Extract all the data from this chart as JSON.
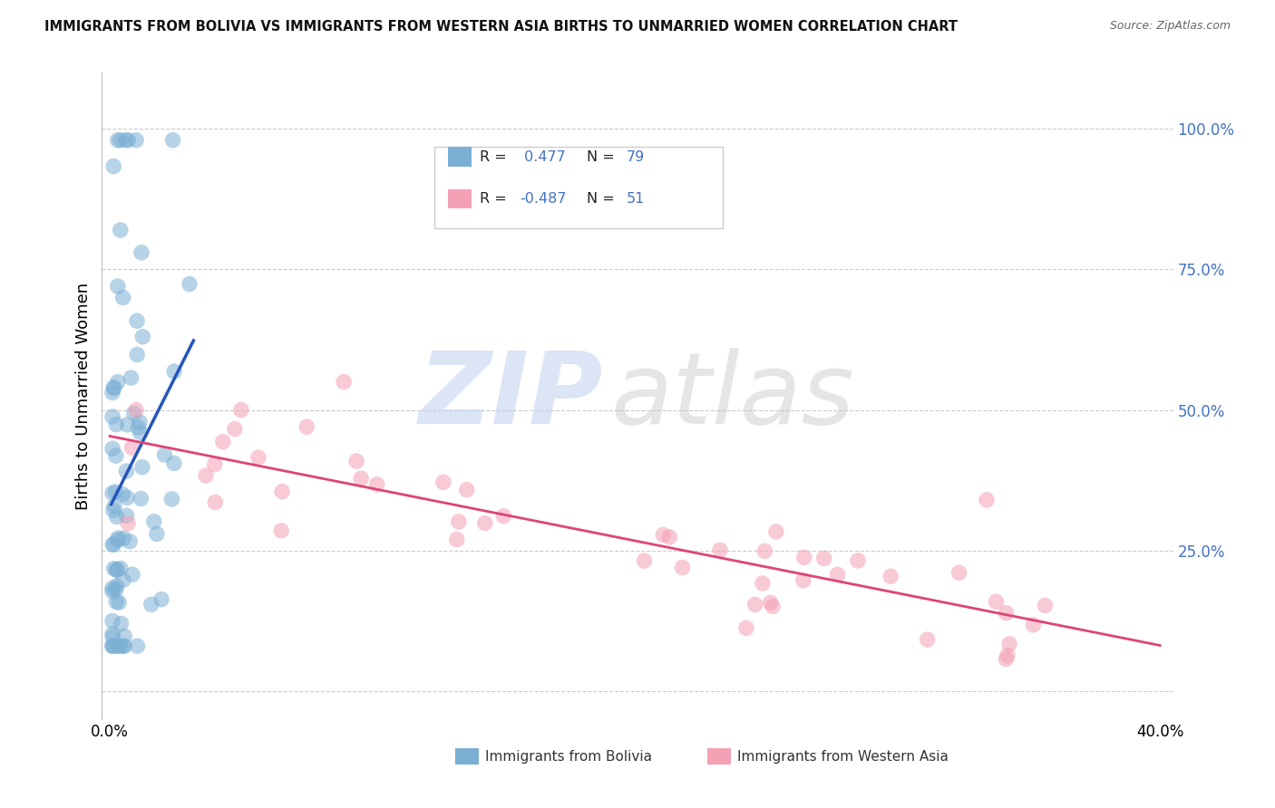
{
  "title": "IMMIGRANTS FROM BOLIVIA VS IMMIGRANTS FROM WESTERN ASIA BIRTHS TO UNMARRIED WOMEN CORRELATION CHART",
  "source": "Source: ZipAtlas.com",
  "ylabel": "Births to Unmarried Women",
  "bolivia_R": 0.477,
  "bolivia_N": 79,
  "western_asia_R": -0.487,
  "western_asia_N": 51,
  "bolivia_color": "#7bafd4",
  "western_asia_color": "#f4a0b5",
  "bolivia_line_color": "#2555bb",
  "western_asia_line_color": "#dd4477",
  "legend_label_bolivia": "Immigrants from Bolivia",
  "legend_label_western_asia": "Immigrants from Western Asia",
  "watermark_zip": "ZIP",
  "watermark_atlas": "atlas",
  "background_color": "#ffffff",
  "r_value_color": "#4472c4",
  "n_value_color": "#4472c4",
  "grid_color": "#cccccc",
  "right_tick_color": "#4472c4",
  "xlim": [
    -0.003,
    0.405
  ],
  "ylim": [
    -0.05,
    1.1
  ],
  "y_ticks": [
    0.0,
    0.25,
    0.5,
    0.75,
    1.0
  ],
  "y_tick_labels": [
    "",
    "25.0%",
    "50.0%",
    "75.0%",
    "100.0%"
  ],
  "x_ticks": [
    0.0,
    0.4
  ],
  "x_tick_labels": [
    "0.0%",
    "40.0%"
  ],
  "seed": 42
}
